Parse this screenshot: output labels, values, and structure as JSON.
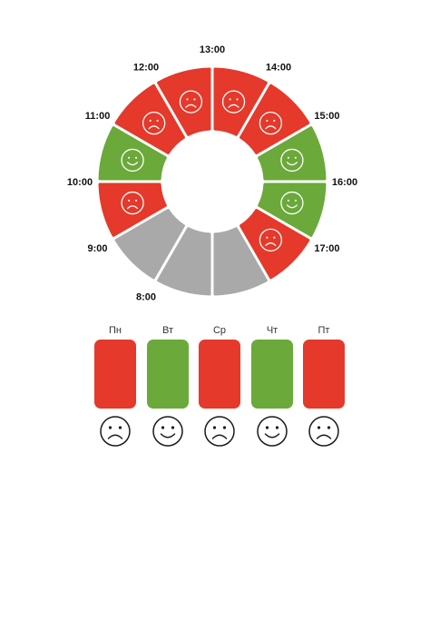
{
  "colors": {
    "red": "#e4392b",
    "green": "#6aa93a",
    "gray": "#a9a9a9",
    "outline": "#1a1a1a"
  },
  "schedule": [
    {
      "time": "8:00",
      "state": "none"
    },
    {
      "time": "9:00",
      "state": "sad"
    },
    {
      "time": "10:00",
      "state": "happy"
    },
    {
      "time": "11:00",
      "state": "sad"
    },
    {
      "time": "12:00",
      "state": "sad"
    },
    {
      "time": "13:00",
      "state": "sad"
    },
    {
      "time": "14:00",
      "state": "sad"
    },
    {
      "time": "15:00",
      "state": "happy"
    },
    {
      "time": "16:00",
      "state": "happy"
    },
    {
      "time": "17:00",
      "state": "sad"
    },
    {
      "state": "none"
    },
    {
      "state": "none"
    }
  ],
  "days": [
    {
      "label": "Пн",
      "state": "sad"
    },
    {
      "label": "Вт",
      "state": "happy"
    },
    {
      "label": "Ср",
      "state": "sad"
    },
    {
      "label": "Чт",
      "state": "happy"
    },
    {
      "label": "Пт",
      "state": "sad"
    }
  ]
}
